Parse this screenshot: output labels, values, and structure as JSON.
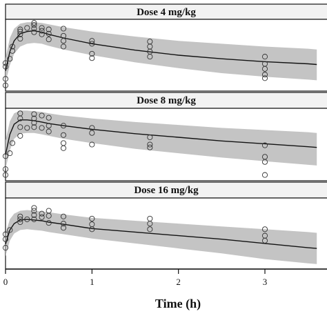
{
  "chart_data": {
    "type": "scatter",
    "xlabel": "Time (h)",
    "xlim": [
      0,
      3.6
    ],
    "xticks": [
      0,
      1,
      2,
      3
    ],
    "ylim": [
      0,
      1
    ],
    "colors": {
      "band": "#c4c4c4",
      "line": "#111111",
      "point": "#333333",
      "strip": "#f2f2f2"
    },
    "panels": [
      {
        "title": "Dose 4 mg/kg",
        "median": {
          "x": [
            0,
            0.05,
            0.1,
            0.17,
            0.25,
            0.33,
            0.42,
            0.5,
            0.67,
            1,
            1.5,
            2,
            2.5,
            3,
            3.5,
            3.6
          ],
          "y": [
            0.28,
            0.55,
            0.7,
            0.8,
            0.83,
            0.84,
            0.82,
            0.79,
            0.74,
            0.66,
            0.57,
            0.5,
            0.45,
            0.41,
            0.38,
            0.37
          ]
        },
        "band_upper": [
          0.46,
          0.74,
          0.87,
          0.94,
          0.96,
          0.96,
          0.95,
          0.93,
          0.89,
          0.83,
          0.76,
          0.7,
          0.66,
          0.62,
          0.59,
          0.58
        ],
        "band_lower": [
          0.12,
          0.36,
          0.52,
          0.62,
          0.66,
          0.67,
          0.66,
          0.63,
          0.58,
          0.5,
          0.4,
          0.32,
          0.25,
          0.2,
          0.16,
          0.15
        ],
        "observed": {
          "x": [
            0,
            0,
            0,
            0,
            0.05,
            0.08,
            0.08,
            0.17,
            0.17,
            0.17,
            0.17,
            0.25,
            0.33,
            0.33,
            0.33,
            0.33,
            0.42,
            0.42,
            0.42,
            0.5,
            0.5,
            0.5,
            0.67,
            0.67,
            0.67,
            0.67,
            1,
            1,
            1,
            1,
            1.67,
            1.67,
            1.67,
            1.67,
            3,
            3,
            3,
            3,
            3
          ],
          "y": [
            0.08,
            0.17,
            0.34,
            0.39,
            0.45,
            0.56,
            0.62,
            0.73,
            0.79,
            0.83,
            0.86,
            0.88,
            0.82,
            0.87,
            0.92,
            0.95,
            0.79,
            0.84,
            0.88,
            0.72,
            0.8,
            0.86,
            0.62,
            0.7,
            0.77,
            0.87,
            0.46,
            0.52,
            0.66,
            0.7,
            0.48,
            0.55,
            0.62,
            0.69,
            0.18,
            0.23,
            0.31,
            0.38,
            0.48
          ]
        }
      },
      {
        "title": "Dose 8 mg/kg",
        "median": {
          "x": [
            0,
            0.05,
            0.1,
            0.17,
            0.25,
            0.33,
            0.42,
            0.5,
            0.67,
            1,
            1.5,
            2,
            2.5,
            3,
            3.5,
            3.6
          ],
          "y": [
            0.36,
            0.64,
            0.78,
            0.84,
            0.84,
            0.83,
            0.81,
            0.79,
            0.76,
            0.71,
            0.65,
            0.6,
            0.55,
            0.51,
            0.47,
            0.46
          ]
        },
        "band_upper": [
          0.56,
          0.82,
          0.93,
          0.97,
          0.97,
          0.96,
          0.95,
          0.93,
          0.9,
          0.86,
          0.81,
          0.77,
          0.73,
          0.7,
          0.67,
          0.66
        ],
        "band_lower": [
          0.16,
          0.42,
          0.58,
          0.65,
          0.66,
          0.66,
          0.64,
          0.62,
          0.58,
          0.52,
          0.44,
          0.38,
          0.32,
          0.27,
          0.22,
          0.21
        ],
        "observed": {
          "x": [
            0,
            0,
            0,
            0.05,
            0.08,
            0.17,
            0.17,
            0.17,
            0.17,
            0.25,
            0.33,
            0.33,
            0.33,
            0.33,
            0.42,
            0.42,
            0.5,
            0.5,
            0.5,
            0.67,
            0.67,
            0.67,
            0.67,
            1,
            1,
            1,
            1.67,
            1.67,
            1.67,
            3,
            3,
            3,
            3
          ],
          "y": [
            0.08,
            0.16,
            0.34,
            0.38,
            0.52,
            0.62,
            0.74,
            0.86,
            0.93,
            0.73,
            0.74,
            0.8,
            0.86,
            0.92,
            0.73,
            0.9,
            0.68,
            0.76,
            0.87,
            0.45,
            0.52,
            0.63,
            0.76,
            0.5,
            0.66,
            0.73,
            0.46,
            0.5,
            0.6,
            0.08,
            0.26,
            0.33,
            0.49
          ]
        }
      },
      {
        "title": "Dose 16 mg/kg",
        "median": {
          "x": [
            0,
            0.05,
            0.1,
            0.17,
            0.25,
            0.33,
            0.42,
            0.5,
            0.67,
            1,
            1.5,
            2,
            2.5,
            3,
            3.5,
            3.6
          ],
          "y": [
            0.35,
            0.55,
            0.64,
            0.69,
            0.7,
            0.69,
            0.68,
            0.66,
            0.63,
            0.57,
            0.52,
            0.47,
            0.42,
            0.36,
            0.3,
            0.29
          ]
        },
        "band_upper": [
          0.5,
          0.7,
          0.78,
          0.82,
          0.83,
          0.82,
          0.81,
          0.8,
          0.77,
          0.72,
          0.68,
          0.64,
          0.6,
          0.56,
          0.52,
          0.51
        ],
        "band_lower": [
          0.18,
          0.4,
          0.5,
          0.55,
          0.56,
          0.55,
          0.54,
          0.52,
          0.49,
          0.43,
          0.36,
          0.29,
          0.22,
          0.14,
          0.08,
          0.07
        ],
        "observed": {
          "x": [
            0,
            0,
            0,
            0.05,
            0.17,
            0.17,
            0.17,
            0.25,
            0.33,
            0.33,
            0.33,
            0.33,
            0.42,
            0.42,
            0.5,
            0.5,
            0.5,
            0.67,
            0.67,
            0.67,
            1,
            1,
            1,
            1.67,
            1.67,
            1.67,
            3,
            3,
            3
          ],
          "y": [
            0.3,
            0.42,
            0.49,
            0.55,
            0.66,
            0.7,
            0.74,
            0.7,
            0.7,
            0.76,
            0.82,
            0.86,
            0.73,
            0.78,
            0.65,
            0.75,
            0.82,
            0.58,
            0.64,
            0.74,
            0.56,
            0.63,
            0.71,
            0.56,
            0.64,
            0.71,
            0.4,
            0.47,
            0.56
          ]
        }
      }
    ]
  }
}
